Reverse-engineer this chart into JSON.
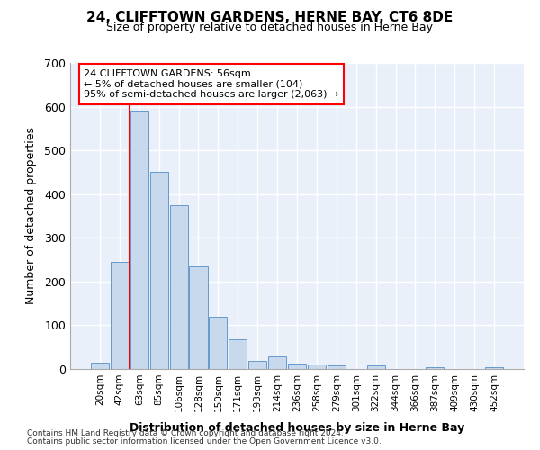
{
  "title": "24, CLIFFTOWN GARDENS, HERNE BAY, CT6 8DE",
  "subtitle": "Size of property relative to detached houses in Herne Bay",
  "xlabel": "Distribution of detached houses by size in Herne Bay",
  "ylabel": "Number of detached properties",
  "bar_color": "#c8d9ee",
  "bar_edge_color": "#6699cc",
  "background_color": "#eaf0f9",
  "grid_color": "#ffffff",
  "categories": [
    "20sqm",
    "42sqm",
    "63sqm",
    "85sqm",
    "106sqm",
    "128sqm",
    "150sqm",
    "171sqm",
    "193sqm",
    "214sqm",
    "236sqm",
    "258sqm",
    "279sqm",
    "301sqm",
    "322sqm",
    "344sqm",
    "366sqm",
    "387sqm",
    "409sqm",
    "430sqm",
    "452sqm"
  ],
  "values": [
    15,
    245,
    590,
    450,
    375,
    235,
    120,
    68,
    18,
    28,
    12,
    10,
    8,
    0,
    8,
    0,
    0,
    5,
    0,
    0,
    5
  ],
  "ylim": [
    0,
    700
  ],
  "yticks": [
    0,
    100,
    200,
    300,
    400,
    500,
    600,
    700
  ],
  "red_line_x": 1.5,
  "annotation_title": "24 CLIFFTOWN GARDENS: 56sqm",
  "annotation_line1": "← 5% of detached houses are smaller (104)",
  "annotation_line2": "95% of semi-detached houses are larger (2,063) →",
  "footer1": "Contains HM Land Registry data © Crown copyright and database right 2024.",
  "footer2": "Contains public sector information licensed under the Open Government Licence v3.0."
}
